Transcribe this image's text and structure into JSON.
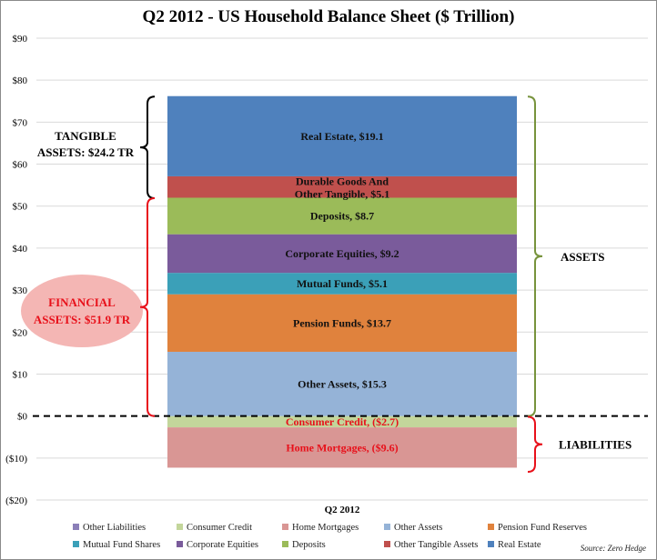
{
  "chart_data": {
    "type": "bar",
    "stacked": true,
    "title": "Q2 2012 - US Household Balance Sheet ($ Trillion)",
    "categories": [
      "Q2 2012"
    ],
    "ylim": [
      -20,
      90
    ],
    "yticks": [
      "$90",
      "$80",
      "$70",
      "$60",
      "$50",
      "$40",
      "$30",
      "$20",
      "$10",
      "$0",
      "($10)",
      "($20)"
    ],
    "ytick_values": [
      90,
      80,
      70,
      60,
      50,
      40,
      30,
      20,
      10,
      0,
      -10,
      -20
    ],
    "grid": true,
    "legend_position": "bottom",
    "series": [
      {
        "name": "Other Liabilities",
        "values": [
          0
        ],
        "color": "#8b7fb8"
      },
      {
        "name": "Consumer Credit",
        "values": [
          -2.7
        ],
        "color": "#c3d69b",
        "label": "Consumer Credit, ($2.7)"
      },
      {
        "name": "Home Mortgages",
        "values": [
          -9.6
        ],
        "color": "#d99694",
        "label": "Home Mortgages, ($9.6)"
      },
      {
        "name": "Other Assets",
        "values": [
          15.3
        ],
        "color": "#95b3d7",
        "label": "Other Assets, $15.3"
      },
      {
        "name": "Pension Fund Reserves",
        "values": [
          13.7
        ],
        "color": "#e0823d",
        "label": "Pension Funds, $13.7"
      },
      {
        "name": "Mutual Fund Shares",
        "values": [
          5.1
        ],
        "color": "#3ba0b8",
        "label": "Mutual Funds, $5.1"
      },
      {
        "name": "Corporate Equities",
        "values": [
          9.2
        ],
        "color": "#7a5b9b",
        "label": "Corporate Equities, $9.2"
      },
      {
        "name": "Deposits",
        "values": [
          8.7
        ],
        "color": "#9bbb59",
        "label": "Deposits, $8.7"
      },
      {
        "name": "Other Tangible Assets",
        "values": [
          5.1
        ],
        "color": "#c0504d",
        "label_lines": [
          "Durable Goods And",
          "Other Tangible, $5.1"
        ]
      },
      {
        "name": "Real Estate",
        "values": [
          19.1
        ],
        "color": "#4f81bd",
        "label": "Real Estate, $19.1"
      }
    ],
    "annotations": {
      "tangible": [
        "TANGIBLE",
        "ASSETS:  $24.2 TR"
      ],
      "financial": [
        "FINANCIAL",
        "ASSETS:  $51.9 TR"
      ],
      "assets": "ASSETS",
      "liabilities": "LIABILITIES"
    },
    "source": "Source: Zero Hedge"
  },
  "colors": {
    "tangible_bracket": "#000000",
    "financial_bracket": "#e8101a",
    "financial_ellipse": "#f4b6b4",
    "assets_bracket": "#77933c",
    "liabilities_bracket": "#e8101a"
  }
}
